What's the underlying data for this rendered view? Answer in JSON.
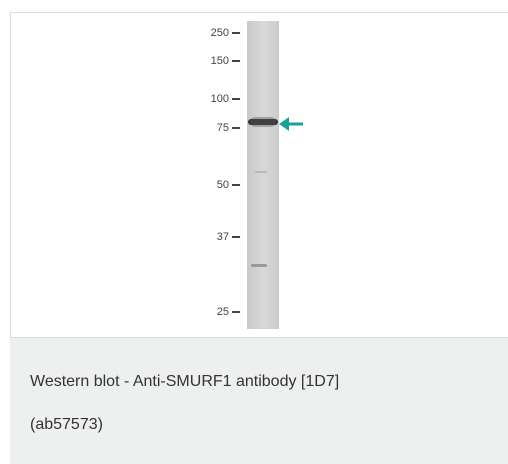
{
  "markers": [
    "250",
    "150",
    "100",
    "75",
    "50",
    "37",
    "25"
  ],
  "caption": [
    "Western blot - Anti-SMURF1 antibody [1D7]",
    "(ab57573)"
  ]
}
